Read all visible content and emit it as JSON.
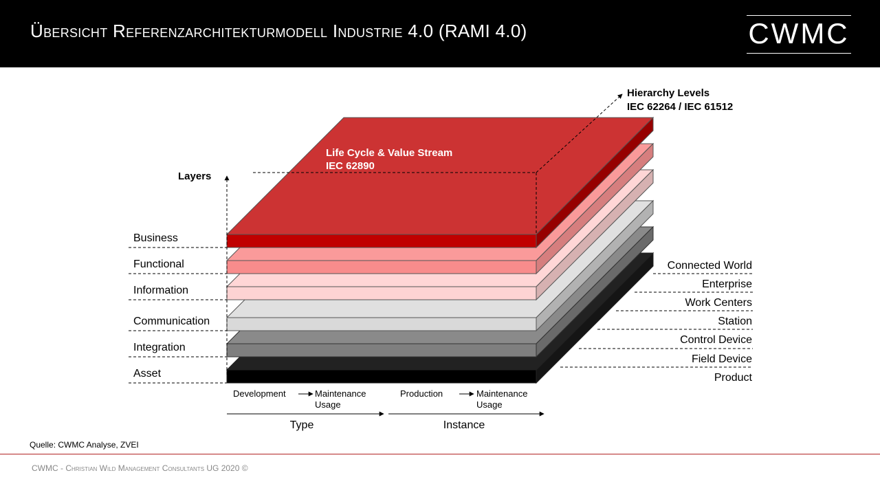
{
  "title": "Übersicht Referenzarchitekturmodell Industrie 4.0 (RAMI 4.0)",
  "logo_text": "CWMC",
  "source": "Quelle: CWMC Analyse, ZVEI",
  "footer": "CWMC - Christian Wild Management Consultants UG 2020 ©",
  "diagram": {
    "layers_title": "Layers",
    "layers": [
      "Business",
      "Functional",
      "Information",
      "Communication",
      "Integration",
      "Asset"
    ],
    "hierarchy_title": "Hierarchy Levels",
    "hierarchy_subtitle": "IEC 62264 / IEC 61512",
    "hierarchy_levels": [
      "Connected World",
      "Enterprise",
      "Work Centers",
      "Station",
      "Control Device",
      "Field Device",
      "Product"
    ],
    "lifecycle_title": "Life Cycle & Value Stream",
    "lifecycle_subtitle": "IEC 62890",
    "type_label": "Type",
    "instance_label": "Instance",
    "type_from": "Development",
    "type_to_1": "Maintenance",
    "type_to_2": "Usage",
    "instance_from": "Production",
    "instance_to_1": "Maintenance",
    "instance_to_2": "Usage"
  },
  "colors": {
    "layer_top": [
      "#cc3333",
      "#fa9a9a",
      "#ffd6d6",
      "#e0e0e0",
      "#8a8a8a",
      "#222222"
    ],
    "layer_front": [
      "#c00000",
      "#f88c8c",
      "#fdd3d3",
      "#d9d9d9",
      "#7f7f7f",
      "#000000"
    ],
    "layer_side": [
      "#960000",
      "#d67e7e",
      "#d6b1b1",
      "#b2b2b2",
      "#6a6a6a",
      "#151515"
    ]
  }
}
